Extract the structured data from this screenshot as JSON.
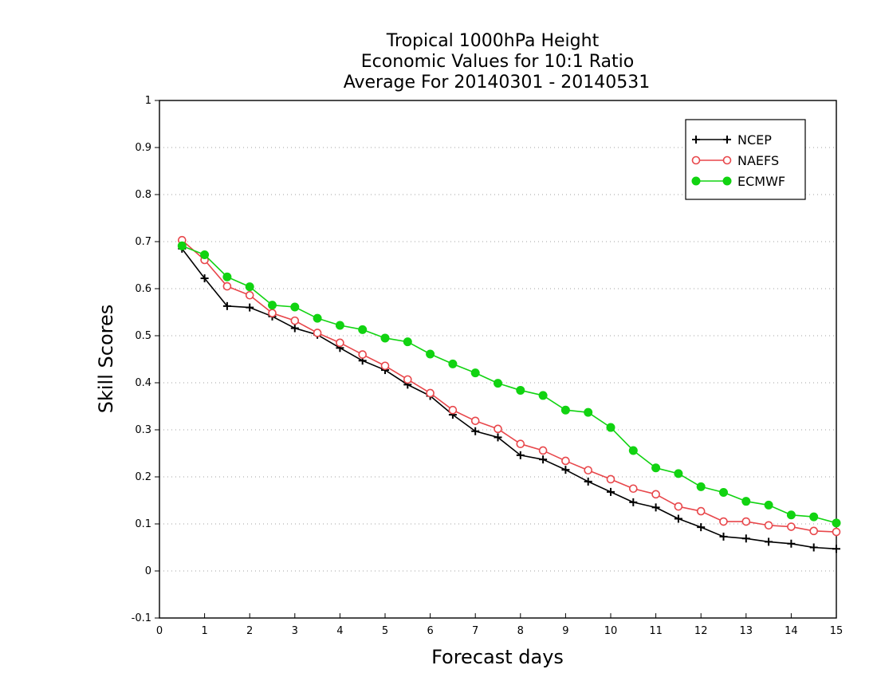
{
  "chart_data": {
    "type": "line",
    "title_lines": [
      "Tropical 1000hPa Height",
      "Economic Values for 10:1 Ratio",
      "Average For 20140301 - 20140531"
    ],
    "xlabel": "Forecast days",
    "ylabel": "Skill Scores",
    "xlim": [
      0,
      15
    ],
    "ylim": [
      -0.1,
      1
    ],
    "x_ticks": [
      0,
      1,
      2,
      3,
      4,
      5,
      6,
      7,
      8,
      9,
      10,
      11,
      12,
      13,
      14,
      15
    ],
    "x_tick_labels": [
      "0",
      "1",
      "2",
      "3",
      "4",
      "5",
      "6",
      "7",
      "8",
      "9",
      "10",
      "11",
      "12",
      "13",
      "14",
      "15"
    ],
    "y_ticks": [
      -0.1,
      0,
      0.1,
      0.2,
      0.3,
      0.4,
      0.5,
      0.6,
      0.7,
      0.8,
      0.9,
      1
    ],
    "y_tick_labels": [
      "-0.1",
      "0",
      "0.1",
      "0.2",
      "0.3",
      "0.4",
      "0.5",
      "0.6",
      "0.7",
      "0.8",
      "0.9",
      "1"
    ],
    "grid": "horizontal dotted",
    "legend_position": "top-right",
    "x": [
      0.5,
      1,
      1.5,
      2,
      2.5,
      3,
      3.5,
      4,
      4.5,
      5,
      5.5,
      6,
      6.5,
      7,
      7.5,
      8,
      8.5,
      9,
      9.5,
      10,
      10.5,
      11,
      11.5,
      12,
      12.5,
      13,
      13.5,
      14,
      14.5,
      15
    ],
    "series": [
      {
        "name": "NCEP",
        "color": "#000000",
        "marker": "plus",
        "values": [
          0.685,
          0.622,
          0.563,
          0.56,
          0.541,
          0.516,
          0.502,
          0.474,
          0.447,
          0.427,
          0.396,
          0.372,
          0.332,
          0.297,
          0.284,
          0.246,
          0.237,
          0.215,
          0.19,
          0.168,
          0.146,
          0.135,
          0.111,
          0.093,
          0.073,
          0.069,
          0.062,
          0.058,
          0.05,
          0.047
        ]
      },
      {
        "name": "NAEFS",
        "color": "#e8474b",
        "marker": "open-circle",
        "values": [
          0.703,
          0.661,
          0.605,
          0.586,
          0.548,
          0.532,
          0.506,
          0.485,
          0.46,
          0.436,
          0.407,
          0.378,
          0.342,
          0.319,
          0.302,
          0.27,
          0.256,
          0.234,
          0.214,
          0.195,
          0.175,
          0.163,
          0.137,
          0.127,
          0.105,
          0.105,
          0.097,
          0.094,
          0.085,
          0.083
        ]
      },
      {
        "name": "ECMWF",
        "color": "#11d311",
        "marker": "filled-circle",
        "values": [
          0.691,
          0.672,
          0.625,
          0.604,
          0.565,
          0.561,
          0.537,
          0.522,
          0.513,
          0.495,
          0.487,
          0.461,
          0.44,
          0.421,
          0.399,
          0.384,
          0.373,
          0.342,
          0.337,
          0.305,
          0.256,
          0.219,
          0.207,
          0.179,
          0.167,
          0.148,
          0.14,
          0.119,
          0.115,
          0.102
        ]
      }
    ]
  }
}
